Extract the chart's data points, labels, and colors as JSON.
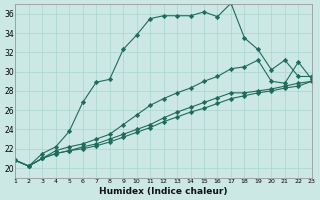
{
  "xlabel": "Humidex (Indice chaleur)",
  "bg_color": "#cce8e4",
  "line_color": "#1e6b5e",
  "grid_color": "#aad4ce",
  "xlim": [
    1,
    23
  ],
  "ylim": [
    19,
    37
  ],
  "yticks": [
    20,
    22,
    24,
    26,
    28,
    30,
    32,
    34,
    36
  ],
  "xticks": [
    1,
    2,
    3,
    4,
    5,
    6,
    7,
    8,
    9,
    10,
    11,
    12,
    13,
    14,
    15,
    16,
    17,
    18,
    19,
    20,
    21,
    22,
    23
  ],
  "series": [
    {
      "x": [
        1,
        2,
        3,
        4,
        5,
        6,
        7,
        8,
        9,
        10,
        11,
        12,
        13,
        14,
        15,
        16,
        17,
        18,
        19,
        20,
        21,
        22,
        23
      ],
      "y": [
        20.8,
        20.2,
        21.5,
        22.2,
        23.8,
        26.8,
        28.9,
        29.2,
        32.3,
        33.8,
        35.5,
        35.8,
        35.8,
        35.8,
        36.2,
        35.7,
        37.1,
        33.5,
        32.3,
        30.2,
        31.2,
        29.5,
        29.5
      ]
    },
    {
      "x": [
        1,
        2,
        3,
        4,
        5,
        6,
        7,
        8,
        9,
        10,
        11,
        12,
        13,
        14,
        15,
        16,
        17,
        18,
        19,
        20,
        21,
        22,
        23
      ],
      "y": [
        20.8,
        20.2,
        21.0,
        21.8,
        22.2,
        22.5,
        23.0,
        23.5,
        24.5,
        25.5,
        26.5,
        27.2,
        27.8,
        28.3,
        29.0,
        29.5,
        30.3,
        30.5,
        31.2,
        29.0,
        28.8,
        31.0,
        29.2
      ]
    },
    {
      "x": [
        1,
        2,
        3,
        4,
        5,
        6,
        7,
        8,
        9,
        10,
        11,
        12,
        13,
        14,
        15,
        16,
        17,
        18,
        19,
        20,
        21,
        22,
        23
      ],
      "y": [
        20.8,
        20.2,
        21.0,
        21.5,
        21.8,
        22.2,
        22.5,
        23.0,
        23.5,
        24.0,
        24.5,
        25.2,
        25.8,
        26.3,
        26.8,
        27.3,
        27.8,
        27.8,
        28.0,
        28.2,
        28.5,
        28.8,
        29.0
      ]
    },
    {
      "x": [
        1,
        2,
        3,
        4,
        5,
        6,
        7,
        8,
        9,
        10,
        11,
        12,
        13,
        14,
        15,
        16,
        17,
        18,
        19,
        20,
        21,
        22,
        23
      ],
      "y": [
        20.8,
        20.2,
        21.0,
        21.5,
        21.8,
        22.0,
        22.3,
        22.7,
        23.2,
        23.7,
        24.2,
        24.8,
        25.3,
        25.8,
        26.2,
        26.7,
        27.2,
        27.5,
        27.8,
        28.0,
        28.3,
        28.5,
        29.0
      ]
    }
  ]
}
